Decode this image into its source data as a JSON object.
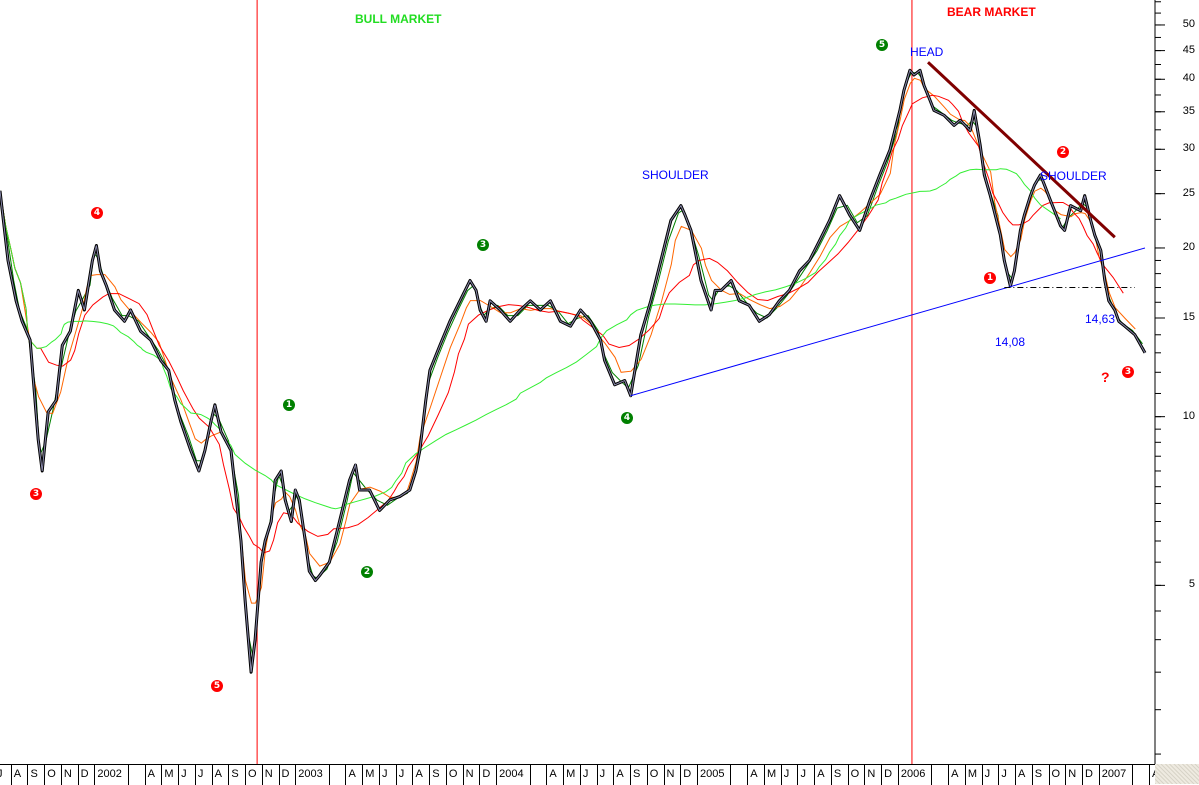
{
  "chart_data": {
    "type": "line",
    "title": "",
    "xlabel": "",
    "ylabel": "",
    "yscale": "log",
    "ylim": [
      2.4,
      55.4
    ],
    "xlim": [
      2001.53,
      2007.28
    ],
    "grid": false,
    "y_tick_labels": [
      "5",
      "10",
      "15",
      "20",
      "25",
      "30",
      "35",
      "40",
      "45",
      "50"
    ],
    "x_tick_labels": [
      "J",
      "A",
      "S",
      "O",
      "N",
      "D",
      "2002",
      "",
      "",
      "A",
      "M",
      "J",
      "J",
      "A",
      "S",
      "O",
      "N",
      "D",
      "2003",
      "",
      "",
      "A",
      "M",
      "J",
      "J",
      "A",
      "S",
      "O",
      "N",
      "D",
      "2004",
      "",
      "",
      "A",
      "M",
      "J",
      "J",
      "A",
      "S",
      "O",
      "N",
      "D",
      "2005",
      "",
      "",
      "A",
      "M",
      "J",
      "J",
      "A",
      "S",
      "O",
      "N",
      "D",
      "2006",
      "",
      "",
      "A",
      "M",
      "J",
      "J",
      "A",
      "S",
      "O",
      "N",
      "D",
      "2007",
      "",
      "",
      "A"
    ],
    "series": [
      {
        "color": "#000000",
        "points": [
          [
            2001.53,
            25.3
          ],
          [
            2001.57,
            19.0
          ],
          [
            2001.61,
            16.1
          ],
          [
            2001.64,
            14.8
          ],
          [
            2001.68,
            13.7
          ],
          [
            2001.72,
            9.1
          ],
          [
            2001.74,
            8.0
          ],
          [
            2001.77,
            10.2
          ],
          [
            2001.81,
            10.7
          ],
          [
            2001.84,
            13.4
          ],
          [
            2001.88,
            14.2
          ],
          [
            2001.92,
            16.8
          ],
          [
            2001.95,
            15.5
          ],
          [
            2001.99,
            19.0
          ],
          [
            2002.01,
            20.2
          ],
          [
            2002.03,
            18.2
          ],
          [
            2002.06,
            17.1
          ],
          [
            2002.1,
            15.5
          ],
          [
            2002.15,
            14.8
          ],
          [
            2002.18,
            15.5
          ],
          [
            2002.23,
            14.2
          ],
          [
            2002.28,
            13.7
          ],
          [
            2002.33,
            12.6
          ],
          [
            2002.37,
            12.1
          ],
          [
            2002.4,
            10.7
          ],
          [
            2002.43,
            9.8
          ],
          [
            2002.48,
            8.7
          ],
          [
            2002.52,
            8.0
          ],
          [
            2002.55,
            8.7
          ],
          [
            2002.58,
            9.8
          ],
          [
            2002.6,
            10.5
          ],
          [
            2002.63,
            9.4
          ],
          [
            2002.68,
            8.7
          ],
          [
            2002.73,
            6.0
          ],
          [
            2002.75,
            4.7
          ],
          [
            2002.78,
            3.5
          ],
          [
            2002.8,
            4.0
          ],
          [
            2002.83,
            5.5
          ],
          [
            2002.85,
            6.0
          ],
          [
            2002.88,
            6.5
          ],
          [
            2002.9,
            7.7
          ],
          [
            2002.93,
            8.0
          ],
          [
            2002.95,
            7.1
          ],
          [
            2002.98,
            6.5
          ],
          [
            2003.0,
            7.4
          ],
          [
            2003.02,
            7.1
          ],
          [
            2003.05,
            6.0
          ],
          [
            2003.07,
            5.3
          ],
          [
            2003.1,
            5.1
          ],
          [
            2003.12,
            5.2
          ],
          [
            2003.17,
            5.5
          ],
          [
            2003.22,
            6.5
          ],
          [
            2003.27,
            7.7
          ],
          [
            2003.3,
            8.2
          ],
          [
            2003.32,
            7.4
          ],
          [
            2003.37,
            7.4
          ],
          [
            2003.42,
            6.8
          ],
          [
            2003.47,
            7.1
          ],
          [
            2003.52,
            7.2
          ],
          [
            2003.57,
            7.4
          ],
          [
            2003.6,
            8.0
          ],
          [
            2003.62,
            8.7
          ],
          [
            2003.65,
            10.7
          ],
          [
            2003.67,
            12.1
          ],
          [
            2003.72,
            13.4
          ],
          [
            2003.77,
            14.8
          ],
          [
            2003.82,
            16.1
          ],
          [
            2003.87,
            17.5
          ],
          [
            2003.9,
            16.8
          ],
          [
            2003.92,
            15.5
          ],
          [
            2003.95,
            14.8
          ],
          [
            2003.97,
            16.1
          ],
          [
            2004.02,
            15.5
          ],
          [
            2004.07,
            14.8
          ],
          [
            2004.12,
            15.5
          ],
          [
            2004.17,
            16.1
          ],
          [
            2004.22,
            15.5
          ],
          [
            2004.27,
            16.1
          ],
          [
            2004.32,
            14.8
          ],
          [
            2004.37,
            14.5
          ],
          [
            2004.42,
            15.5
          ],
          [
            2004.47,
            14.8
          ],
          [
            2004.52,
            13.7
          ],
          [
            2004.54,
            12.6
          ],
          [
            2004.59,
            11.4
          ],
          [
            2004.64,
            11.6
          ],
          [
            2004.67,
            10.9
          ],
          [
            2004.72,
            14.0
          ],
          [
            2004.77,
            16.1
          ],
          [
            2004.82,
            19.0
          ],
          [
            2004.87,
            22.4
          ],
          [
            2004.92,
            23.8
          ],
          [
            2004.94,
            22.9
          ],
          [
            2004.97,
            21.5
          ],
          [
            2005.02,
            17.5
          ],
          [
            2005.07,
            15.5
          ],
          [
            2005.09,
            16.8
          ],
          [
            2005.12,
            16.8
          ],
          [
            2005.17,
            17.5
          ],
          [
            2005.21,
            16.1
          ],
          [
            2005.26,
            15.8
          ],
          [
            2005.31,
            14.8
          ],
          [
            2005.36,
            15.2
          ],
          [
            2005.41,
            16.1
          ],
          [
            2005.46,
            16.8
          ],
          [
            2005.51,
            18.2
          ],
          [
            2005.56,
            19.0
          ],
          [
            2005.61,
            20.6
          ],
          [
            2005.66,
            22.4
          ],
          [
            2005.71,
            24.8
          ],
          [
            2005.76,
            22.9
          ],
          [
            2005.81,
            21.5
          ],
          [
            2005.86,
            24.3
          ],
          [
            2005.91,
            27.0
          ],
          [
            2005.96,
            29.9
          ],
          [
            2006.01,
            35.2
          ],
          [
            2006.03,
            38.2
          ],
          [
            2006.06,
            41.5
          ],
          [
            2006.08,
            40.7
          ],
          [
            2006.11,
            41.5
          ],
          [
            2006.13,
            39.0
          ],
          [
            2006.16,
            36.7
          ],
          [
            2006.18,
            35.2
          ],
          [
            2006.23,
            34.5
          ],
          [
            2006.28,
            33.1
          ],
          [
            2006.31,
            33.8
          ],
          [
            2006.36,
            32.4
          ],
          [
            2006.38,
            35.2
          ],
          [
            2006.41,
            30.5
          ],
          [
            2006.43,
            27.0
          ],
          [
            2006.46,
            24.8
          ],
          [
            2006.51,
            21.1
          ],
          [
            2006.53,
            19.0
          ],
          [
            2006.56,
            17.1
          ],
          [
            2006.58,
            18.2
          ],
          [
            2006.61,
            21.5
          ],
          [
            2006.63,
            22.9
          ],
          [
            2006.66,
            24.8
          ],
          [
            2006.68,
            25.9
          ],
          [
            2006.71,
            27.0
          ],
          [
            2006.73,
            25.9
          ],
          [
            2006.76,
            24.3
          ],
          [
            2006.78,
            23.3
          ],
          [
            2006.81,
            21.9
          ],
          [
            2006.83,
            21.5
          ],
          [
            2006.86,
            23.8
          ],
          [
            2006.91,
            23.3
          ],
          [
            2006.93,
            24.8
          ],
          [
            2006.96,
            22.4
          ],
          [
            2006.98,
            21.1
          ],
          [
            2007.01,
            19.8
          ],
          [
            2007.03,
            17.5
          ],
          [
            2007.05,
            16.1
          ],
          [
            2007.08,
            15.5
          ],
          [
            2007.1,
            14.8
          ],
          [
            2007.13,
            14.5
          ],
          [
            2007.18,
            14.0
          ],
          [
            2007.23,
            13.0
          ]
        ]
      }
    ],
    "moving_averages": [
      {
        "color": "#008000",
        "window": 2
      },
      {
        "color": "#ff6600",
        "window": 5
      },
      {
        "color": "#ff0000",
        "window": 10
      },
      {
        "color": "#33ee33",
        "window": 36
      }
    ],
    "trendlines": [
      {
        "kind": "neckline",
        "color": "#0000ff",
        "from": [
          2004.67,
          10.9
        ],
        "to": [
          2007.23,
          20.0
        ]
      },
      {
        "kind": "downtrend",
        "color": "#800000",
        "from": [
          2006.15,
          42.9
        ],
        "to": [
          2007.08,
          20.9
        ]
      },
      {
        "kind": "support-dashed",
        "color": "#000000",
        "from": [
          2006.53,
          17.0
        ],
        "to": [
          2007.18,
          17.0
        ]
      }
    ],
    "vertical_markers": [
      {
        "color": "#ff0000",
        "x": 2002.81
      },
      {
        "color": "#ff0000",
        "x": 2006.07
      }
    ],
    "annotations": {
      "bull_market": "BULL MARKET",
      "bear_market": "BEAR MARKET",
      "head": "HEAD",
      "left_shoulder": "SHOULDER",
      "right_shoulder": "SHOULDER",
      "level_1": "14,08",
      "level_2": "14,63",
      "question": "?"
    },
    "wave_labels": {
      "red_color": "#ff0000",
      "green_color": "#008000",
      "items": [
        "3",
        "4",
        "5",
        "1",
        "2",
        "3",
        "4",
        "5",
        "1",
        "2",
        "3"
      ]
    }
  }
}
